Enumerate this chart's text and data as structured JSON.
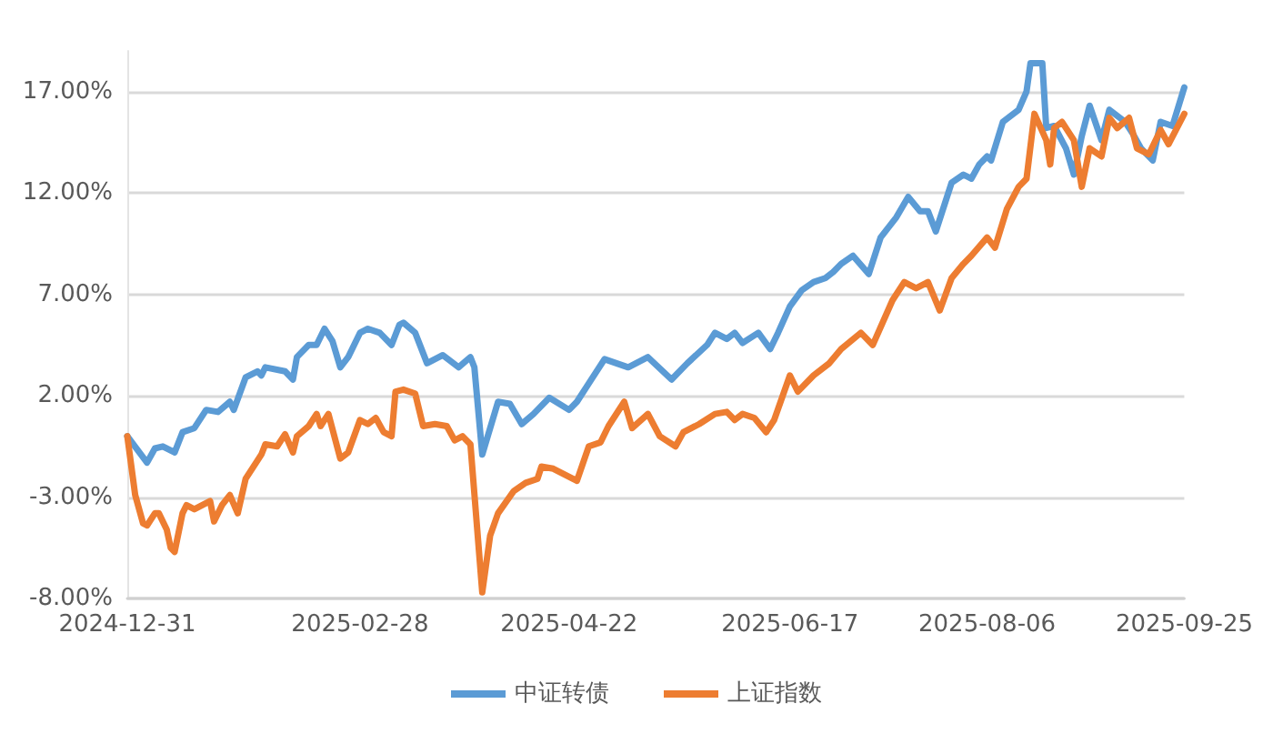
{
  "chart_data": {
    "type": "line",
    "xlim": [
      "2024-12-31",
      "2025-09-25"
    ],
    "xticks": [
      {
        "value": "2024-12-31",
        "label": "2024-12-31"
      },
      {
        "value": "2025-02-28",
        "label": "2025-02-28"
      },
      {
        "value": "2025-04-22",
        "label": "2025-04-22"
      },
      {
        "value": "2025-06-17",
        "label": "2025-06-17"
      },
      {
        "value": "2025-08-06",
        "label": "2025-08-06"
      },
      {
        "value": "2025-09-25",
        "label": "2025-09-25"
      }
    ],
    "ylim": [
      -8,
      19
    ],
    "yticks": [
      {
        "value": -8,
        "label": "-8.00%"
      },
      {
        "value": -3,
        "label": "-3.00%"
      },
      {
        "value": 2,
        "label": "2.00%"
      },
      {
        "value": 7,
        "label": "7.00%"
      },
      {
        "value": 12,
        "label": "12.00%"
      },
      {
        "value": 17,
        "label": "17.00%"
      }
    ],
    "grid": "y",
    "legend": "bottom",
    "marker": "none",
    "line_style": "solid",
    "series": [
      {
        "name": "中证转债",
        "color": "#5b9bd5",
        "x": [
          "2024-12-31",
          "2025-01-05",
          "2025-01-07",
          "2025-01-09",
          "2025-01-12",
          "2025-01-14",
          "2025-01-17",
          "2025-01-20",
          "2025-01-23",
          "2025-01-26",
          "2025-01-27",
          "2025-01-30",
          "2025-02-02",
          "2025-02-03",
          "2025-02-04",
          "2025-02-09",
          "2025-02-11",
          "2025-02-12",
          "2025-02-15",
          "2025-02-17",
          "2025-02-19",
          "2025-02-21",
          "2025-02-23",
          "2025-02-25",
          "2025-02-28",
          "2025-03-02",
          "2025-03-05",
          "2025-03-08",
          "2025-03-10",
          "2025-03-11",
          "2025-03-14",
          "2025-03-17",
          "2025-03-21",
          "2025-03-25",
          "2025-03-28",
          "2025-03-29",
          "2025-03-31",
          "2025-04-04",
          "2025-04-07",
          "2025-04-10",
          "2025-04-13",
          "2025-04-17",
          "2025-04-22",
          "2025-04-24",
          "2025-04-27",
          "2025-05-01",
          "2025-05-07",
          "2025-05-12",
          "2025-05-18",
          "2025-05-22",
          "2025-05-27",
          "2025-05-29",
          "2025-06-01",
          "2025-06-03",
          "2025-06-05",
          "2025-06-09",
          "2025-06-12",
          "2025-06-14",
          "2025-06-17",
          "2025-06-20",
          "2025-06-23",
          "2025-06-26",
          "2025-06-28",
          "2025-06-30",
          "2025-07-03",
          "2025-07-07",
          "2025-07-10",
          "2025-07-14",
          "2025-07-17",
          "2025-07-20",
          "2025-07-22",
          "2025-07-24",
          "2025-07-28",
          "2025-07-31",
          "2025-08-02",
          "2025-08-04",
          "2025-08-06",
          "2025-08-07",
          "2025-08-10",
          "2025-08-14",
          "2025-08-16",
          "2025-08-17",
          "2025-08-20",
          "2025-08-21",
          "2025-08-23",
          "2025-08-26",
          "2025-08-28",
          "2025-08-30",
          "2025-09-01",
          "2025-09-04",
          "2025-09-06",
          "2025-09-10",
          "2025-09-12",
          "2025-09-14",
          "2025-09-17",
          "2025-09-19",
          "2025-09-22",
          "2025-09-25"
        ],
        "values": [
          0.0,
          -1.3,
          -0.6,
          -0.5,
          -0.8,
          0.2,
          0.4,
          1.3,
          1.2,
          1.7,
          1.3,
          2.9,
          3.2,
          3.0,
          3.4,
          3.2,
          2.8,
          3.9,
          4.5,
          4.5,
          5.3,
          4.7,
          3.4,
          3.9,
          5.1,
          5.3,
          5.1,
          4.5,
          5.5,
          5.6,
          5.1,
          3.6,
          4.0,
          3.4,
          3.9,
          3.4,
          -0.9,
          1.7,
          1.6,
          0.6,
          1.1,
          1.9,
          1.3,
          1.7,
          2.6,
          3.8,
          3.4,
          3.9,
          2.8,
          3.6,
          4.5,
          5.1,
          4.8,
          5.1,
          4.6,
          5.1,
          4.3,
          5.1,
          6.4,
          7.2,
          7.6,
          7.8,
          8.1,
          8.5,
          8.9,
          8.0,
          9.8,
          10.8,
          11.8,
          11.1,
          11.1,
          10.1,
          12.5,
          12.9,
          12.7,
          13.4,
          13.8,
          13.6,
          15.5,
          16.1,
          17.0,
          18.4,
          18.4,
          15.2,
          15.3,
          14.2,
          12.9,
          14.8,
          16.3,
          14.6,
          16.1,
          15.5,
          14.9,
          14.2,
          13.6,
          15.5,
          15.3,
          17.2
        ]
      },
      {
        "name": "上证指数",
        "color": "#ed7d31",
        "x": [
          "2024-12-31",
          "2025-01-02",
          "2025-01-04",
          "2025-01-05",
          "2025-01-07",
          "2025-01-08",
          "2025-01-10",
          "2025-01-11",
          "2025-01-12",
          "2025-01-14",
          "2025-01-15",
          "2025-01-17",
          "2025-01-20",
          "2025-01-21",
          "2025-01-22",
          "2025-01-24",
          "2025-01-26",
          "2025-01-28",
          "2025-01-30",
          "2025-02-02",
          "2025-02-03",
          "2025-02-04",
          "2025-02-07",
          "2025-02-09",
          "2025-02-11",
          "2025-02-12",
          "2025-02-15",
          "2025-02-17",
          "2025-02-18",
          "2025-02-20",
          "2025-02-23",
          "2025-02-25",
          "2025-02-28",
          "2025-03-02",
          "2025-03-04",
          "2025-03-06",
          "2025-03-08",
          "2025-03-09",
          "2025-03-11",
          "2025-03-14",
          "2025-03-16",
          "2025-03-19",
          "2025-03-22",
          "2025-03-24",
          "2025-03-26",
          "2025-03-28",
          "2025-03-31",
          "2025-04-02",
          "2025-04-04",
          "2025-04-08",
          "2025-04-11",
          "2025-04-14",
          "2025-04-15",
          "2025-04-18",
          "2025-04-24",
          "2025-04-27",
          "2025-04-30",
          "2025-05-02",
          "2025-05-06",
          "2025-05-08",
          "2025-05-12",
          "2025-05-15",
          "2025-05-19",
          "2025-05-21",
          "2025-05-25",
          "2025-05-29",
          "2025-06-01",
          "2025-06-03",
          "2025-06-05",
          "2025-06-08",
          "2025-06-11",
          "2025-06-13",
          "2025-06-17",
          "2025-06-19",
          "2025-06-23",
          "2025-06-27",
          "2025-06-30",
          "2025-07-05",
          "2025-07-08",
          "2025-07-13",
          "2025-07-16",
          "2025-07-19",
          "2025-07-22",
          "2025-07-25",
          "2025-07-28",
          "2025-07-31",
          "2025-08-02",
          "2025-08-06",
          "2025-08-08",
          "2025-08-11",
          "2025-08-14",
          "2025-08-16",
          "2025-08-18",
          "2025-08-21",
          "2025-08-22",
          "2025-08-23",
          "2025-08-25",
          "2025-08-28",
          "2025-08-30",
          "2025-09-01",
          "2025-09-04",
          "2025-09-06",
          "2025-09-08",
          "2025-09-11",
          "2025-09-13",
          "2025-09-16",
          "2025-09-19",
          "2025-09-21",
          "2025-09-25"
        ],
        "values": [
          0.0,
          -2.9,
          -4.3,
          -4.4,
          -3.8,
          -3.8,
          -4.6,
          -5.5,
          -5.7,
          -3.8,
          -3.4,
          -3.6,
          -3.3,
          -3.2,
          -4.2,
          -3.4,
          -2.9,
          -3.8,
          -2.1,
          -1.2,
          -0.9,
          -0.4,
          -0.5,
          0.1,
          -0.8,
          0.0,
          0.5,
          1.1,
          0.5,
          1.1,
          -1.1,
          -0.8,
          0.8,
          0.6,
          0.9,
          0.2,
          0.0,
          2.2,
          2.3,
          2.1,
          0.5,
          0.6,
          0.5,
          -0.2,
          0.0,
          -0.4,
          -7.7,
          -4.9,
          -3.8,
          -2.7,
          -2.3,
          -2.1,
          -1.5,
          -1.6,
          -2.2,
          -0.5,
          -0.3,
          0.5,
          1.7,
          0.4,
          1.1,
          0.0,
          -0.5,
          0.2,
          0.6,
          1.1,
          1.2,
          0.8,
          1.1,
          0.9,
          0.2,
          0.8,
          3.0,
          2.2,
          3.0,
          3.6,
          4.3,
          5.1,
          4.5,
          6.7,
          7.6,
          7.3,
          7.6,
          6.2,
          7.8,
          8.5,
          8.9,
          9.8,
          9.3,
          11.2,
          12.3,
          12.7,
          15.9,
          14.6,
          13.4,
          15.2,
          15.5,
          14.6,
          12.3,
          14.2,
          13.8,
          15.7,
          15.2,
          15.7,
          14.2,
          13.9,
          15.1,
          14.4,
          15.9
        ]
      }
    ]
  }
}
